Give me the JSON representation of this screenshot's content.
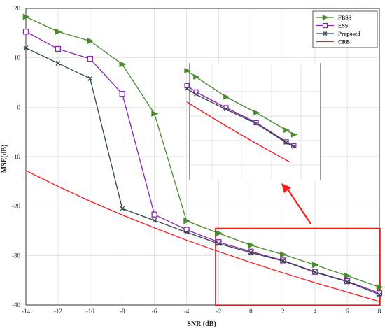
{
  "chart_data": {
    "type": "line",
    "xlabel": "SNR (dB)",
    "ylabel": "MSE(dB)",
    "xlim": [
      -14,
      8
    ],
    "ylim": [
      -40,
      20
    ],
    "x_ticks": [
      "-14",
      "-12",
      "-10",
      "-8",
      "-6",
      "-4",
      "-2",
      "0",
      "2",
      "4",
      "6",
      "8"
    ],
    "y_ticks": [
      "20",
      "10",
      "0",
      "-10",
      "-20",
      "-30",
      "-40"
    ],
    "grid": true,
    "legend_position": "top-right",
    "x": [
      -14,
      -12,
      -10,
      -8,
      -6,
      -4,
      -2,
      0,
      2,
      4,
      6,
      8
    ],
    "series": [
      {
        "name": "FBSS",
        "color": "#4a8a2e",
        "marker": "triangle-right",
        "values": [
          18.3,
          15.3,
          13.4,
          8.7,
          -1.3,
          -23.0,
          -25.5,
          -27.9,
          -29.8,
          -31.9,
          -34.1,
          -36.4
        ]
      },
      {
        "name": "ESS",
        "color": "#8b22b8",
        "marker": "square",
        "values": [
          15.3,
          11.8,
          9.8,
          2.7,
          -21.7,
          -24.8,
          -27.3,
          -29.2,
          -31.0,
          -33.3,
          -35.2,
          -37.6
        ]
      },
      {
        "name": "Proposed",
        "color": "#2f4a42",
        "marker": "x",
        "values": [
          12.0,
          8.9,
          5.8,
          -20.5,
          -22.9,
          -25.3,
          -27.6,
          -29.4,
          -31.1,
          -33.4,
          -35.3,
          -37.9
        ]
      },
      {
        "name": "CRB",
        "color": "#ff1a1a",
        "marker": "none",
        "values": [
          -12.8,
          -16.0,
          -19.0,
          -21.8,
          -24.4,
          -26.9,
          -29.2,
          -31.4,
          -33.5,
          -35.5,
          -37.4,
          -39.3
        ]
      }
    ]
  }
}
